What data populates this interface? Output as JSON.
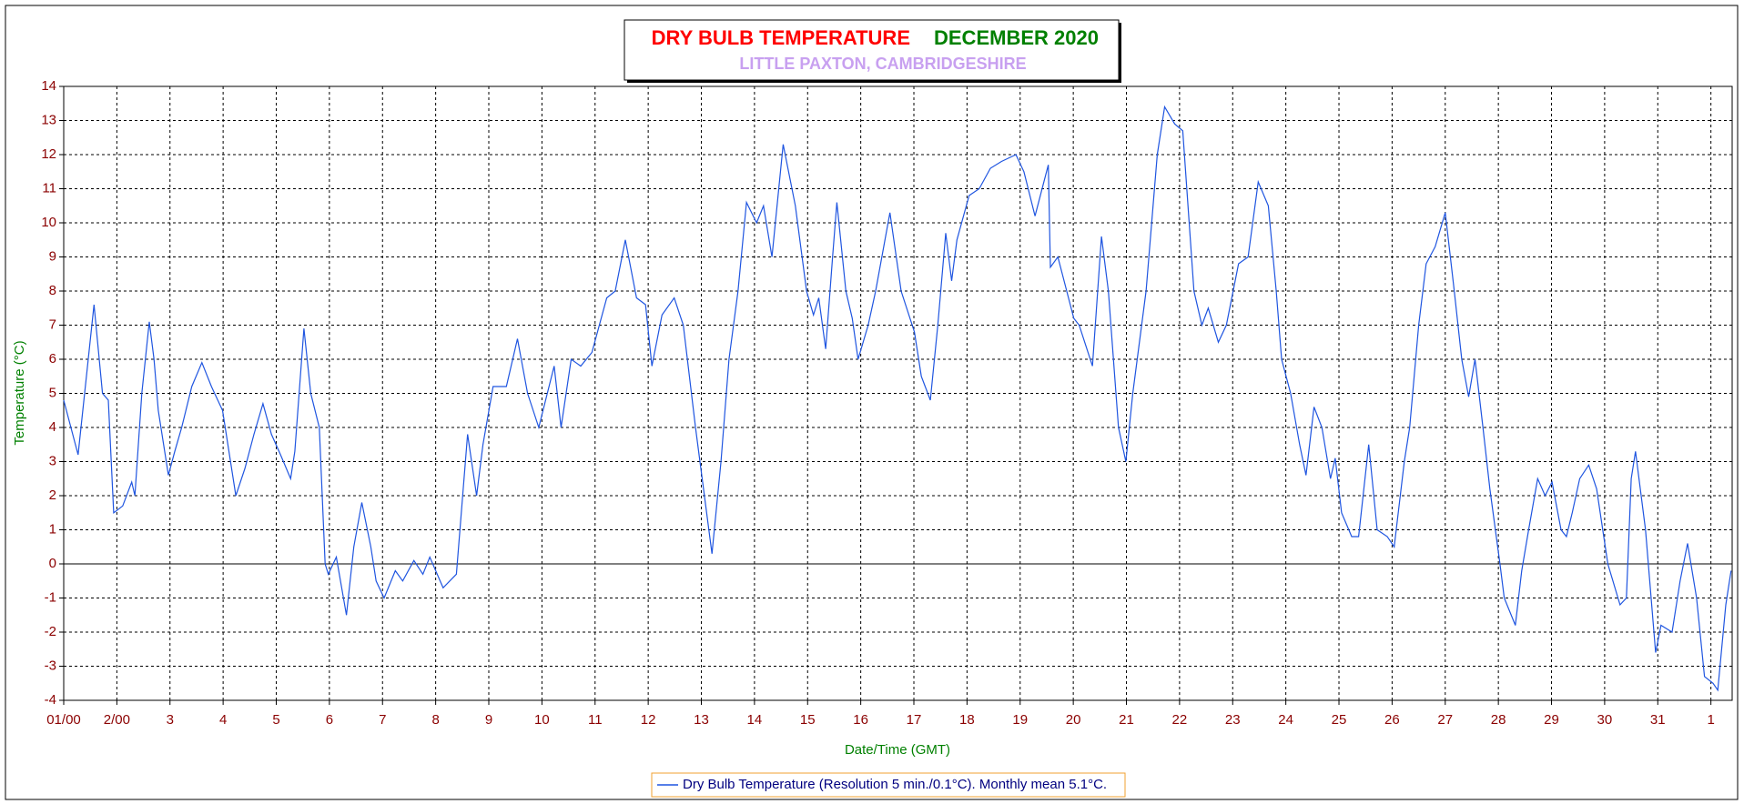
{
  "chart_data": {
    "type": "line",
    "title": "DRY BULB TEMPERATURE",
    "title_date": "DECEMBER 2020",
    "subtitle": "LITTLE PAXTON, CAMBRIDGESHIRE",
    "xlabel": "Date/Time (GMT)",
    "ylabel": "Temperature (°C)",
    "xlim": [
      1,
      32.4
    ],
    "ylim": [
      -4,
      14
    ],
    "xticks": [
      {
        "value": 1,
        "label": "01/00"
      },
      {
        "value": 2,
        "label": "2/00"
      },
      3,
      4,
      5,
      6,
      7,
      8,
      9,
      10,
      11,
      12,
      13,
      14,
      15,
      16,
      17,
      18,
      19,
      20,
      21,
      22,
      23,
      24,
      25,
      26,
      27,
      28,
      29,
      30,
      31,
      {
        "value": 32,
        "label": "1"
      }
    ],
    "yticks": [
      -4,
      -3,
      -2,
      -1,
      0,
      1,
      2,
      3,
      4,
      5,
      6,
      7,
      8,
      9,
      10,
      11,
      12,
      13,
      14
    ],
    "grid": true,
    "x": [
      1.0,
      1.27,
      1.57,
      1.73,
      1.84,
      1.94,
      2.11,
      2.28,
      2.34,
      2.47,
      2.61,
      2.7,
      2.78,
      2.97,
      3.09,
      3.22,
      3.41,
      3.6,
      3.78,
      3.99,
      4.24,
      4.41,
      4.58,
      4.75,
      4.91,
      5.08,
      5.27,
      5.35,
      5.52,
      5.65,
      5.81,
      5.92,
      5.98,
      6.13,
      6.32,
      6.46,
      6.61,
      6.78,
      6.88,
      7.03,
      7.24,
      7.38,
      7.59,
      7.76,
      7.89,
      8.14,
      8.39,
      8.6,
      8.77,
      8.89,
      9.08,
      9.33,
      9.54,
      9.73,
      9.94,
      10.23,
      10.36,
      10.55,
      10.73,
      10.94,
      11.22,
      11.38,
      11.57,
      11.78,
      11.95,
      12.07,
      12.26,
      12.49,
      12.66,
      12.89,
      13.2,
      13.37,
      13.52,
      13.69,
      13.85,
      14.04,
      14.17,
      14.33,
      14.54,
      14.77,
      14.98,
      15.11,
      15.21,
      15.34,
      15.47,
      15.55,
      15.72,
      15.84,
      15.95,
      16.14,
      16.28,
      16.55,
      16.76,
      17.01,
      17.14,
      17.31,
      17.45,
      17.6,
      17.71,
      17.81,
      18.04,
      18.23,
      18.44,
      18.65,
      18.92,
      19.07,
      19.28,
      19.53,
      19.57,
      19.71,
      20.01,
      20.11,
      20.36,
      20.53,
      20.66,
      20.85,
      20.99,
      21.12,
      21.37,
      21.58,
      21.72,
      21.91,
      22.06,
      22.27,
      22.42,
      22.54,
      22.73,
      22.88,
      23.11,
      23.29,
      23.48,
      23.67,
      23.82,
      23.92,
      24.09,
      24.26,
      24.38,
      24.53,
      24.68,
      24.84,
      24.93,
      25.05,
      25.24,
      25.37,
      25.56,
      25.72,
      25.91,
      26.04,
      26.23,
      26.33,
      26.5,
      26.64,
      26.81,
      27.0,
      27.17,
      27.31,
      27.44,
      27.56,
      27.71,
      27.84,
      28.03,
      28.11,
      28.32,
      28.44,
      28.57,
      28.74,
      28.88,
      29.01,
      29.18,
      29.28,
      29.39,
      29.53,
      29.7,
      29.85,
      30.06,
      30.29,
      30.41,
      30.5,
      30.58,
      30.77,
      30.96,
      31.06,
      31.27,
      31.42,
      31.56,
      31.73,
      31.88,
      32.04,
      32.13,
      32.28,
      32.38
    ],
    "series": [
      {
        "name": "Dry Bulb Temperature (Resolution 5 min./0.1°C). Monthly mean 5.1°C.",
        "color": "#1f55e0",
        "values": [
          4.8,
          3.2,
          7.6,
          5.0,
          4.8,
          1.5,
          1.7,
          2.4,
          2.0,
          5.0,
          7.1,
          6.0,
          4.5,
          2.6,
          3.3,
          4.0,
          5.2,
          5.9,
          5.2,
          4.5,
          2.0,
          2.8,
          3.8,
          4.7,
          3.8,
          3.2,
          2.5,
          3.3,
          6.9,
          5.0,
          4.0,
          0.0,
          -0.3,
          0.2,
          -1.5,
          0.5,
          1.8,
          0.5,
          -0.5,
          -1.0,
          -0.2,
          -0.5,
          0.1,
          -0.3,
          0.2,
          -0.7,
          -0.3,
          3.8,
          2.0,
          3.5,
          5.2,
          5.2,
          6.6,
          5.0,
          4.0,
          5.8,
          4.0,
          6.0,
          5.8,
          6.2,
          7.8,
          8.0,
          9.5,
          7.8,
          7.6,
          5.8,
          7.3,
          7.8,
          7.0,
          4.0,
          0.3,
          3.0,
          6.0,
          8.0,
          10.6,
          10.0,
          10.5,
          9.0,
          12.3,
          10.5,
          8.0,
          7.3,
          7.8,
          6.3,
          9.0,
          10.6,
          8.0,
          7.2,
          6.0,
          7.0,
          8.0,
          10.3,
          8.0,
          6.8,
          5.5,
          4.8,
          7.0,
          9.7,
          8.3,
          9.5,
          10.8,
          11.0,
          11.6,
          11.8,
          12.0,
          11.5,
          10.2,
          11.7,
          8.7,
          9.0,
          7.2,
          7.0,
          5.8,
          9.6,
          8.0,
          4.0,
          3.0,
          5.0,
          8.0,
          12.0,
          13.4,
          12.9,
          12.7,
          8.0,
          7.0,
          7.5,
          6.5,
          7.0,
          8.8,
          9.0,
          11.2,
          10.5,
          8.0,
          6.0,
          5.0,
          3.5,
          2.6,
          4.6,
          4.0,
          2.5,
          3.1,
          1.5,
          0.8,
          0.8,
          3.5,
          1.0,
          0.8,
          0.5,
          3.0,
          4.0,
          7.0,
          8.8,
          9.3,
          10.3,
          8.0,
          6.0,
          4.9,
          6.0,
          4.0,
          2.2,
          0.0,
          -1.0,
          -1.8,
          -0.2,
          1.0,
          2.5,
          2.0,
          2.4,
          1.0,
          0.8,
          1.5,
          2.5,
          2.9,
          2.2,
          0.0,
          -1.2,
          -1.0,
          2.5,
          3.3,
          1.0,
          -2.6,
          -1.8,
          -2.0,
          -0.5,
          0.6,
          -1.0,
          -3.3,
          -3.5,
          -3.7,
          -1.2,
          -0.2
        ]
      }
    ]
  }
}
